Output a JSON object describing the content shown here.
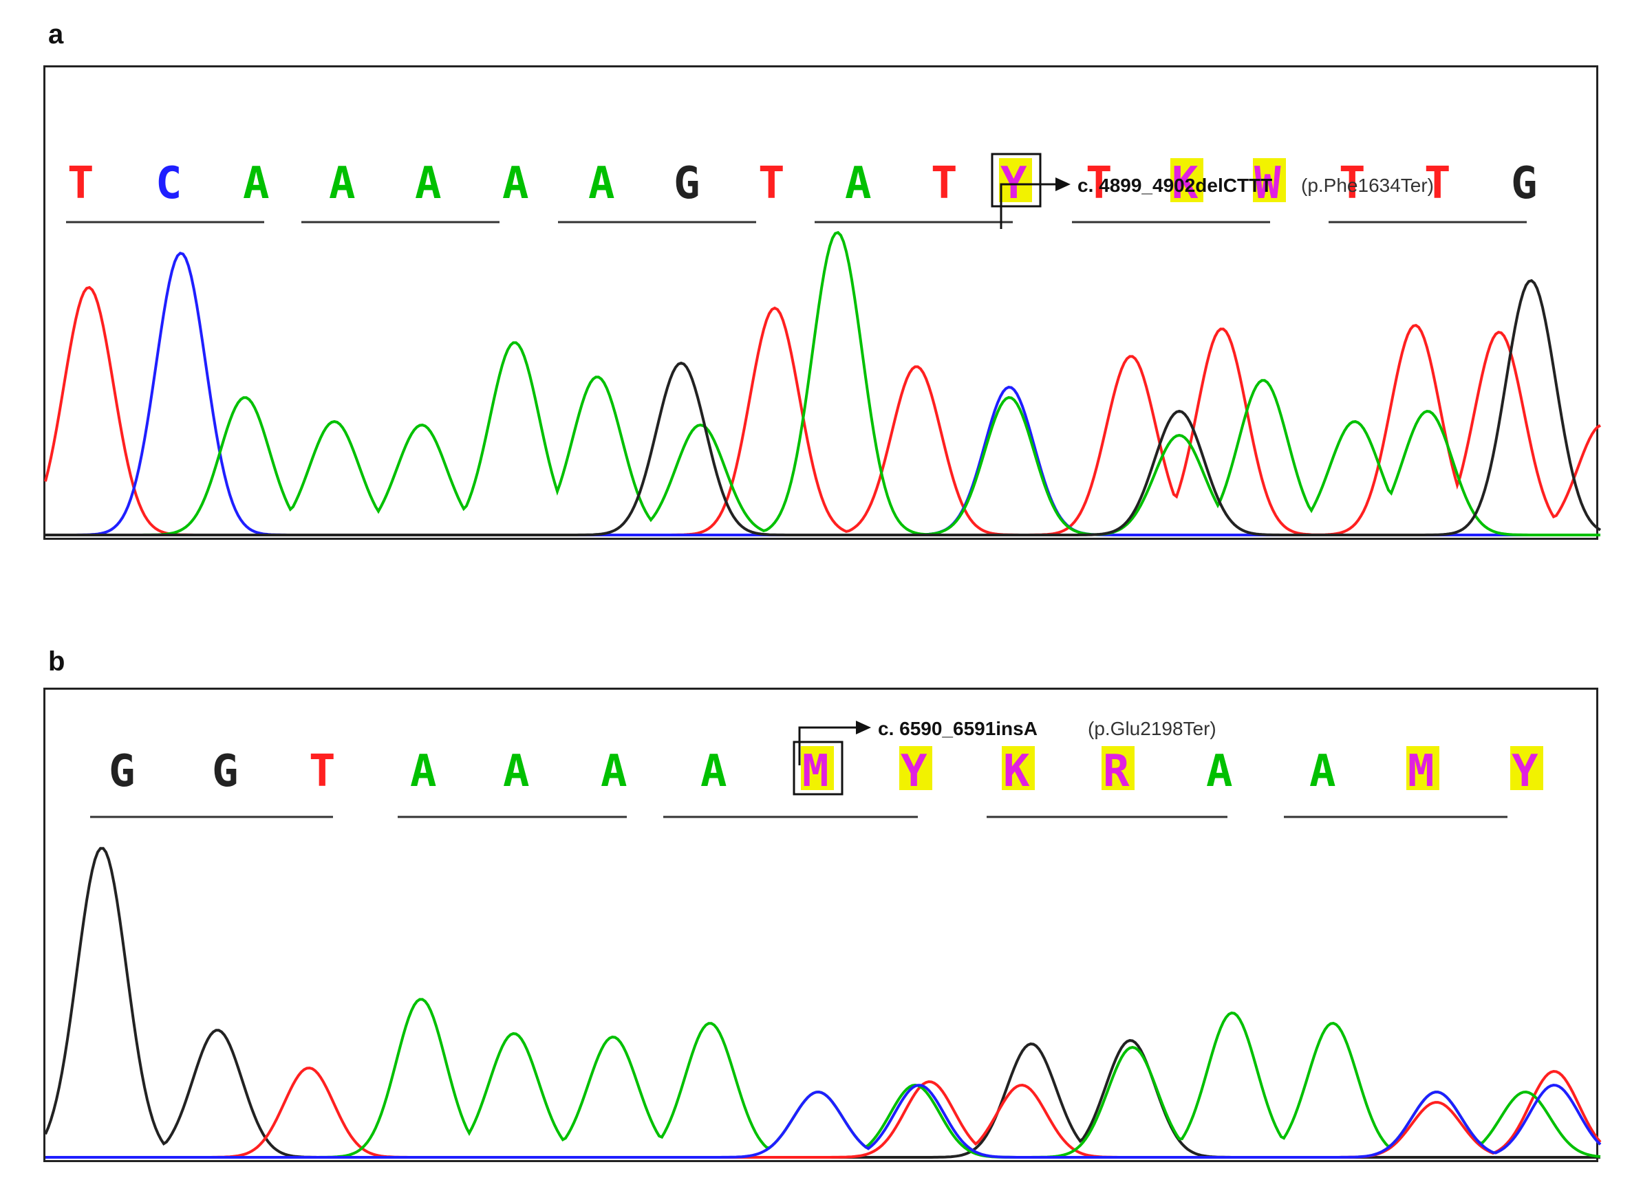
{
  "panels": [
    {
      "letter": "a",
      "bases": [
        "T",
        "C",
        "A",
        "A",
        "A",
        "A",
        "A",
        "G",
        "T",
        "A",
        "T",
        "Y",
        "T",
        "K",
        "W",
        "T",
        "T",
        "G"
      ],
      "highlighted": [
        11,
        13,
        14
      ],
      "boxed": 11,
      "mutation": "c. 4899_4902delCTTT",
      "protein": "(p.Phe1634Ter)"
    },
    {
      "letter": "b",
      "bases": [
        "G",
        "G",
        "T",
        "A",
        "A",
        "A",
        "A",
        "M",
        "Y",
        "K",
        "R",
        "A",
        "A",
        "M",
        "Y"
      ],
      "highlighted": [
        7,
        8,
        9,
        10,
        13,
        14
      ],
      "boxed": 7,
      "mutation": "c. 6590_6591insA",
      "protein": "(p.Glu2198Ter)"
    }
  ],
  "colors": {
    "A": "#00c000",
    "C": "#1f1fff",
    "G": "#222222",
    "T": "#ff2020",
    "ambiguous": "#e020e0",
    "highlight": "#f2f200"
  }
}
